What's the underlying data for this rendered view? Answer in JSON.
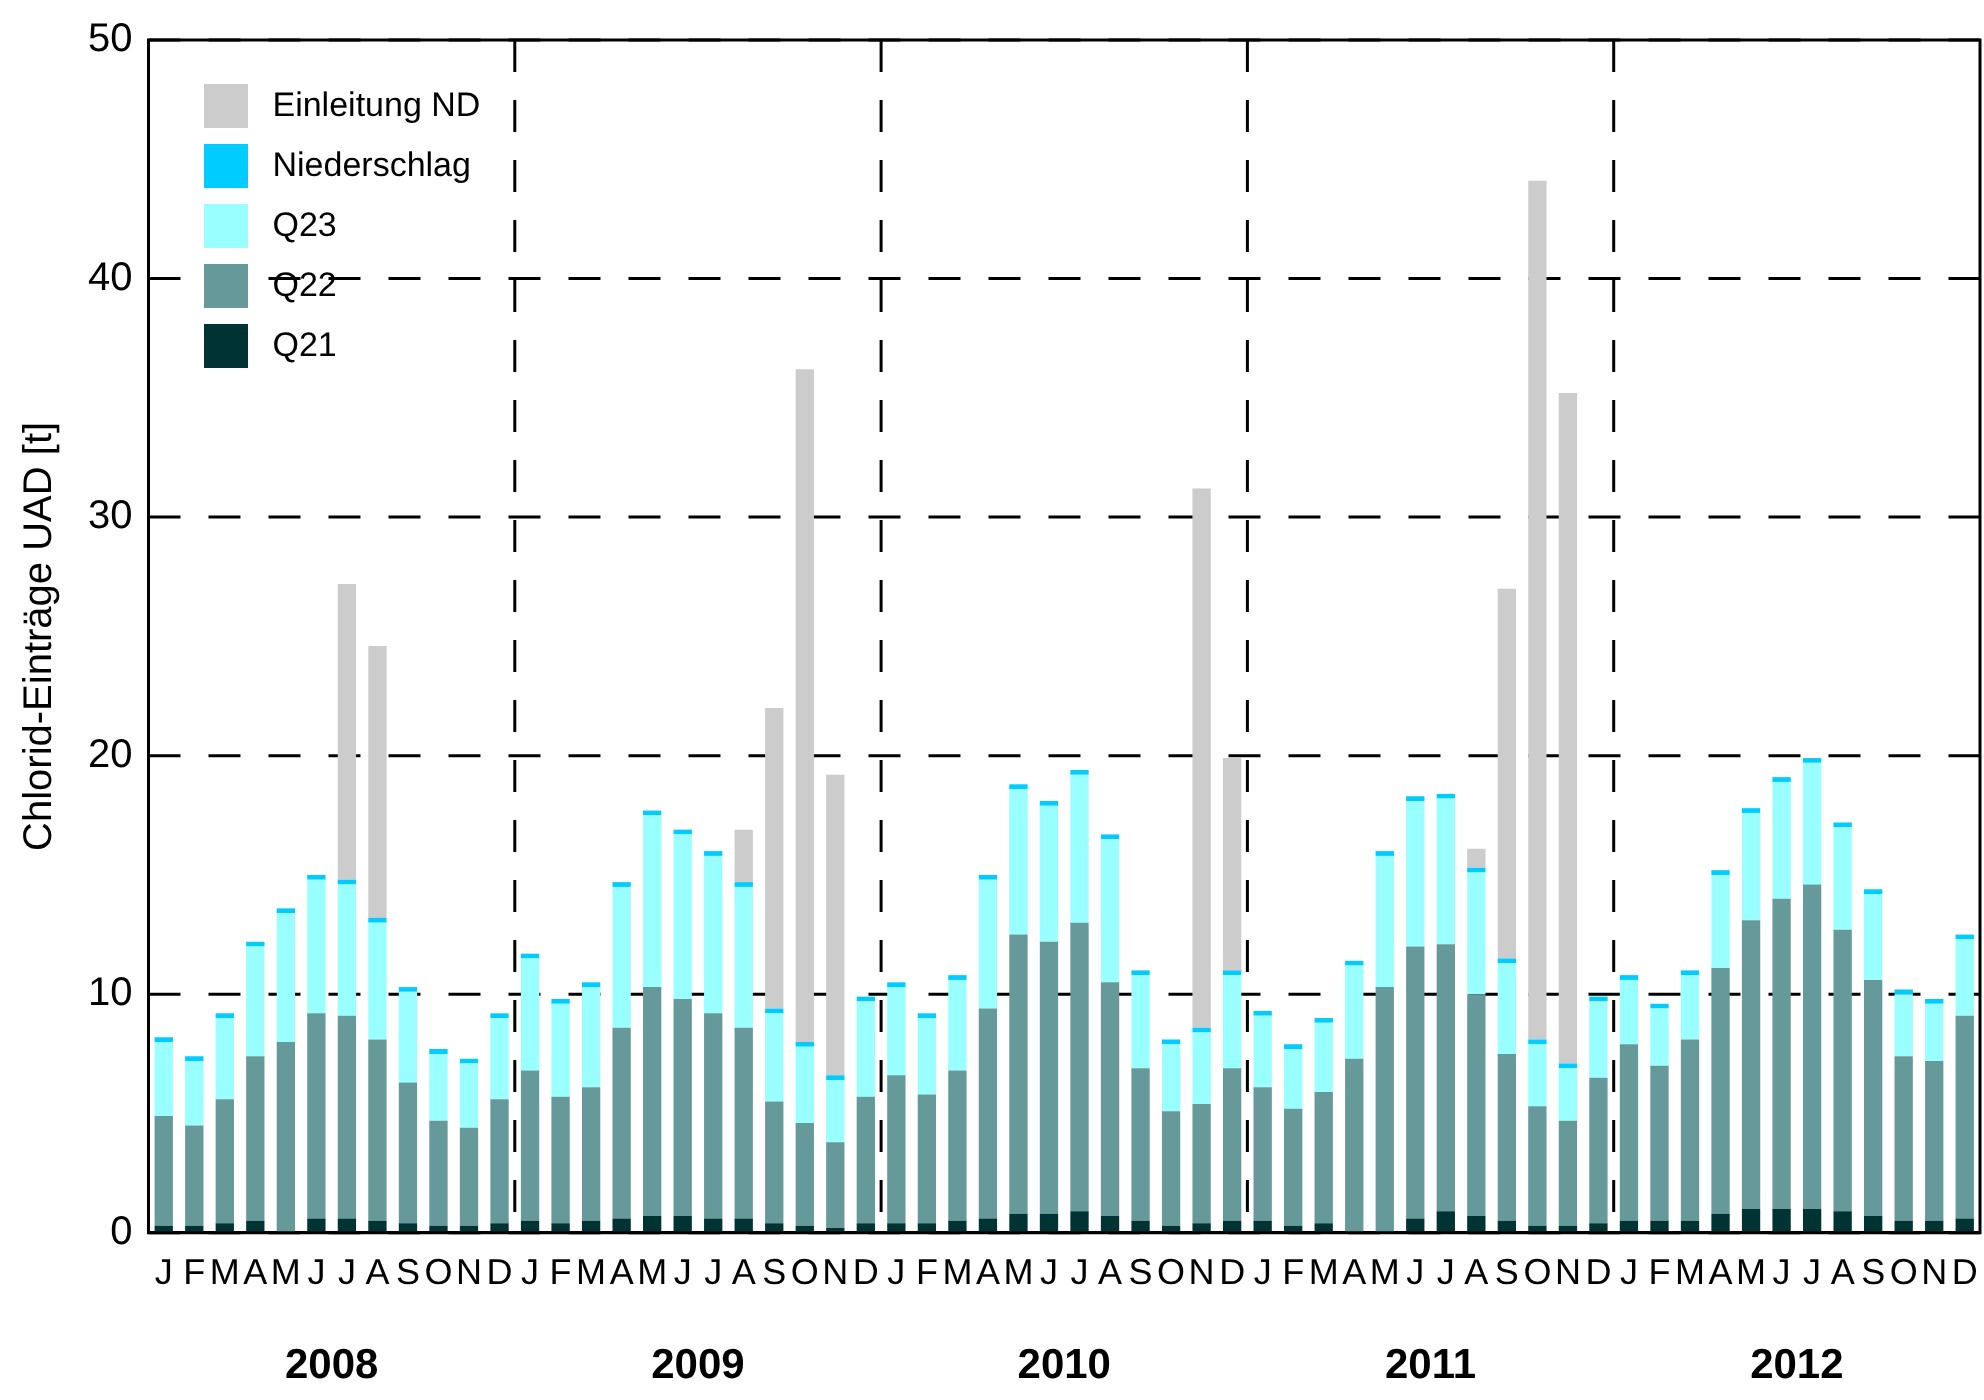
{
  "chart_data": {
    "type": "bar",
    "stacked": true,
    "ylabel": "Chlorid-Einträge UAD [t]",
    "ylim": [
      0,
      50
    ],
    "yticks": [
      0,
      10,
      20,
      30,
      40,
      50
    ],
    "grid": true,
    "legend": "top left",
    "categories": [
      "J",
      "F",
      "M",
      "A",
      "M",
      "J",
      "J",
      "A",
      "S",
      "O",
      "N",
      "D",
      "J",
      "F",
      "M",
      "A",
      "M",
      "J",
      "J",
      "A",
      "S",
      "O",
      "N",
      "D",
      "J",
      "F",
      "M",
      "A",
      "M",
      "J",
      "J",
      "A",
      "S",
      "O",
      "N",
      "D",
      "J",
      "F",
      "M",
      "A",
      "M",
      "J",
      "J",
      "A",
      "S",
      "O",
      "N",
      "D",
      "J",
      "F",
      "M",
      "A",
      "M",
      "J",
      "J",
      "A",
      "S",
      "O",
      "N",
      "D"
    ],
    "annotations": [
      "2008",
      "2009",
      "2010",
      "2011",
      "2012"
    ],
    "series": [
      {
        "name": "Q21",
        "color": "#003333",
        "values": [
          0.3,
          0.3,
          0.4,
          0.5,
          0,
          0.6,
          0.6,
          0.5,
          0.4,
          0.3,
          0.3,
          0.4,
          0.5,
          0.4,
          0.5,
          0.6,
          0.7,
          0.7,
          0.6,
          0.6,
          0.4,
          0.3,
          0.2,
          0.4,
          0.4,
          0.4,
          0.5,
          0.6,
          0.8,
          0.8,
          0.9,
          0.7,
          0.5,
          0.3,
          0.4,
          0.5,
          0.5,
          0.3,
          0.4,
          0,
          0,
          0.6,
          0.9,
          0.7,
          0.5,
          0.3,
          0.3,
          0.4,
          0.5,
          0.5,
          0.5,
          0.8,
          1.0,
          1.0,
          1.0,
          0.9,
          0.7,
          0.5,
          0.5,
          0.6
        ]
      },
      {
        "name": "Q22",
        "color": "#669999",
        "values": [
          4.6,
          4.2,
          5.2,
          6.9,
          8.0,
          8.6,
          8.5,
          7.6,
          5.9,
          4.4,
          4.1,
          5.2,
          6.3,
          5.3,
          5.6,
          8.0,
          9.6,
          9.1,
          8.6,
          8.0,
          5.1,
          4.3,
          3.6,
          5.3,
          6.2,
          5.4,
          6.3,
          8.8,
          11.7,
          11.4,
          12.1,
          9.8,
          6.4,
          4.8,
          5.0,
          6.4,
          5.6,
          4.9,
          5.5,
          7.3,
          10.3,
          11.4,
          11.2,
          9.3,
          7.0,
          5.0,
          4.4,
          6.1,
          7.4,
          6.5,
          7.6,
          10.3,
          12.1,
          13.0,
          13.6,
          11.8,
          9.9,
          6.9,
          6.7,
          8.5
        ]
      },
      {
        "name": "Q23",
        "color": "#99ffff",
        "values": [
          3.1,
          2.7,
          3.4,
          4.6,
          5.4,
          5.6,
          5.5,
          4.9,
          3.8,
          2.8,
          2.7,
          3.4,
          4.7,
          3.9,
          4.2,
          5.9,
          7.2,
          6.9,
          6.6,
          5.9,
          3.7,
          3.2,
          2.6,
          4.0,
          3.7,
          3.2,
          3.8,
          5.4,
          6.1,
          5.7,
          6.2,
          6.0,
          3.9,
          2.8,
          3.0,
          3.9,
          3.0,
          2.5,
          2.9,
          3.9,
          5.5,
          6.1,
          6.1,
          5.1,
          3.8,
          2.6,
          2.2,
          3.2,
          2.7,
          2.4,
          2.7,
          3.9,
          4.5,
          4.9,
          5.1,
          4.3,
          3.6,
          2.6,
          2.4,
          3.2
        ]
      },
      {
        "name": "Niederschlag",
        "color": "#00ccff",
        "values": [
          0.2,
          0.2,
          0.2,
          0.2,
          0.2,
          0.2,
          0.2,
          0.2,
          0.2,
          0.2,
          0.2,
          0.2,
          0.2,
          0.2,
          0.2,
          0.2,
          0.2,
          0.2,
          0.2,
          0.2,
          0.2,
          0.2,
          0.2,
          0.2,
          0.2,
          0.2,
          0.2,
          0.2,
          0.2,
          0.2,
          0.2,
          0.2,
          0.2,
          0.2,
          0.2,
          0.2,
          0.2,
          0.2,
          0.2,
          0.2,
          0.2,
          0.2,
          0.2,
          0.2,
          0.2,
          0.2,
          0.2,
          0.2,
          0.2,
          0.2,
          0.2,
          0.2,
          0.2,
          0.2,
          0.2,
          0.2,
          0.2,
          0.2,
          0.2,
          0.2
        ]
      },
      {
        "name": "Einleitung ND",
        "color": "#cccccc",
        "values": [
          0,
          0,
          0,
          0,
          0,
          0,
          12.4,
          11.4,
          0,
          0,
          0,
          0,
          0,
          0,
          0,
          0,
          0,
          0,
          0,
          2.2,
          12.6,
          28.2,
          12.6,
          0,
          0,
          0,
          0,
          0,
          0,
          0,
          0,
          0,
          0,
          0,
          22.6,
          8.9,
          0,
          0,
          0,
          0,
          0,
          0,
          0,
          0.8,
          15.5,
          36.0,
          28.1,
          0,
          0,
          0,
          0,
          0,
          0,
          0,
          0,
          0,
          0,
          0,
          0,
          0
        ]
      }
    ]
  }
}
